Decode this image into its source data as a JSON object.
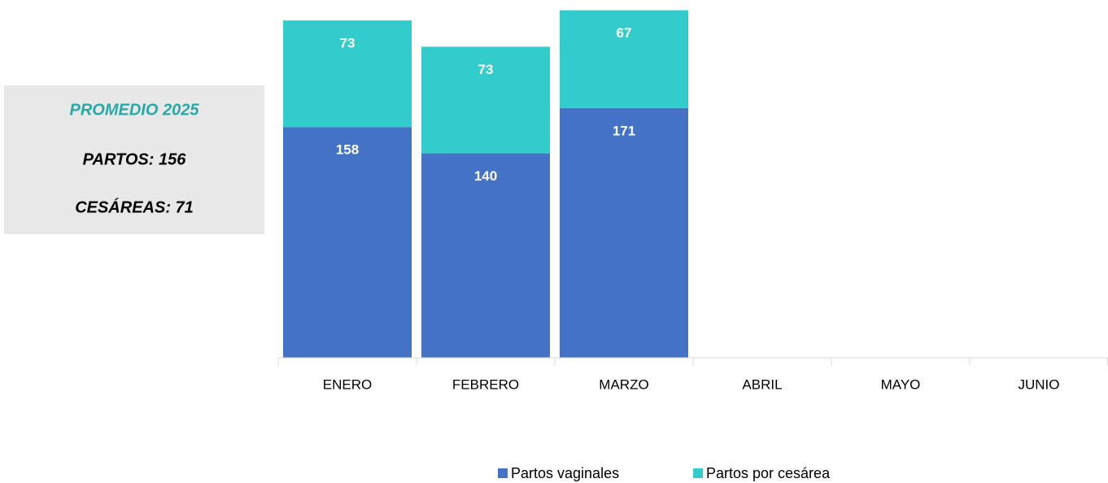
{
  "summary": {
    "title": "PROMEDIO 2025",
    "lines": [
      "PARTOS: 156",
      "CESÁREAS: 71"
    ]
  },
  "chart_data": {
    "type": "stacked_bar",
    "categories": [
      "ENERO",
      "FEBRERO",
      "MARZO",
      "ABRIL",
      "MAYO",
      "JUNIO"
    ],
    "series": [
      {
        "name": "Partos vaginales",
        "color": "#4472c4",
        "values": [
          158,
          140,
          171,
          null,
          null,
          null
        ]
      },
      {
        "name": "Partos por cesárea",
        "color": "#33cccc",
        "values": [
          73,
          73,
          67,
          null,
          null,
          null
        ]
      }
    ],
    "ylim": [
      0,
      240
    ],
    "legend": "bottom"
  }
}
